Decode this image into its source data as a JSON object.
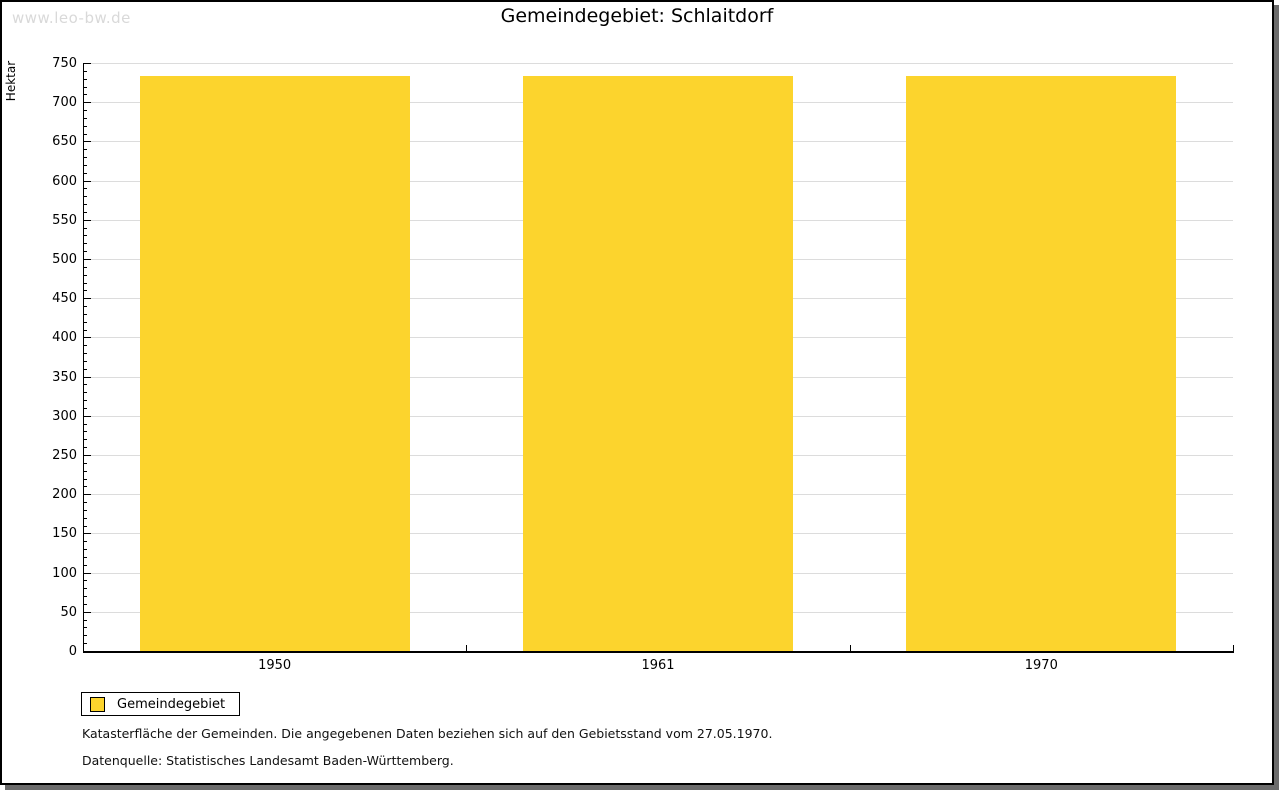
{
  "watermark": "www.leo-bw.de",
  "title": "Gemeindegebiet: Schlaitdorf",
  "chart_data": {
    "type": "bar",
    "title": "Gemeindegebiet: Schlaitdorf",
    "categories": [
      "1950",
      "1961",
      "1970"
    ],
    "series": [
      {
        "name": "Gemeindegebiet",
        "values": [
          734,
          734,
          734
        ]
      }
    ],
    "xlabel": "",
    "ylabel": "Hektar",
    "ylim": [
      0,
      750
    ],
    "ytick_step": 50,
    "yminor_step": 10,
    "grid": true,
    "legend_position": "bottom-left",
    "bar_color": "#FCD42D",
    "grid_color": "#dcdcdc"
  },
  "legend": {
    "items": [
      {
        "label": "Gemeindegebiet",
        "color": "#FCD42D"
      }
    ]
  },
  "footnotes": [
    "Katasterfläche der Gemeinden. Die angegebenen Daten beziehen sich auf den Gebietsstand vom 27.05.1970.",
    "Datenquelle: Statistisches Landesamt Baden-Württemberg."
  ]
}
